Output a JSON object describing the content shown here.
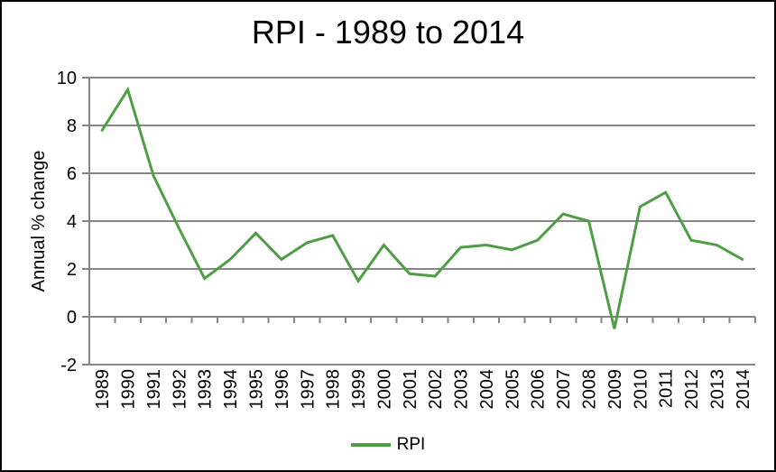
{
  "chart_data": {
    "type": "line",
    "title": "RPI - 1989 to 2014",
    "ylabel": "Annual % change",
    "xlabel": "",
    "categories": [
      "1989",
      "1990",
      "1991",
      "1992",
      "1993",
      "1994",
      "1995",
      "1996",
      "1997",
      "1998",
      "1999",
      "2000",
      "2001",
      "2002",
      "2003",
      "2004",
      "2005",
      "2006",
      "2007",
      "2008",
      "2009",
      "2010",
      "2011",
      "2012",
      "2013",
      "2014"
    ],
    "series": [
      {
        "name": "RPI",
        "color": "#4F9D45",
        "values": [
          7.8,
          9.5,
          5.9,
          3.7,
          1.6,
          2.4,
          3.5,
          2.4,
          3.1,
          3.4,
          1.5,
          3.0,
          1.8,
          1.7,
          2.9,
          3.0,
          2.8,
          3.2,
          4.3,
          4.0,
          -0.5,
          4.6,
          5.2,
          3.2,
          3.0,
          2.4
        ]
      }
    ],
    "ylim": [
      -2,
      10
    ],
    "yticks": [
      10,
      8,
      6,
      4,
      2,
      0,
      -2
    ],
    "grid": true,
    "legend_position": "bottom",
    "colors": {
      "gridline": "#878787",
      "axis": "#878787",
      "text": "#000000",
      "background": "#ffffff",
      "border": "#000000"
    }
  }
}
